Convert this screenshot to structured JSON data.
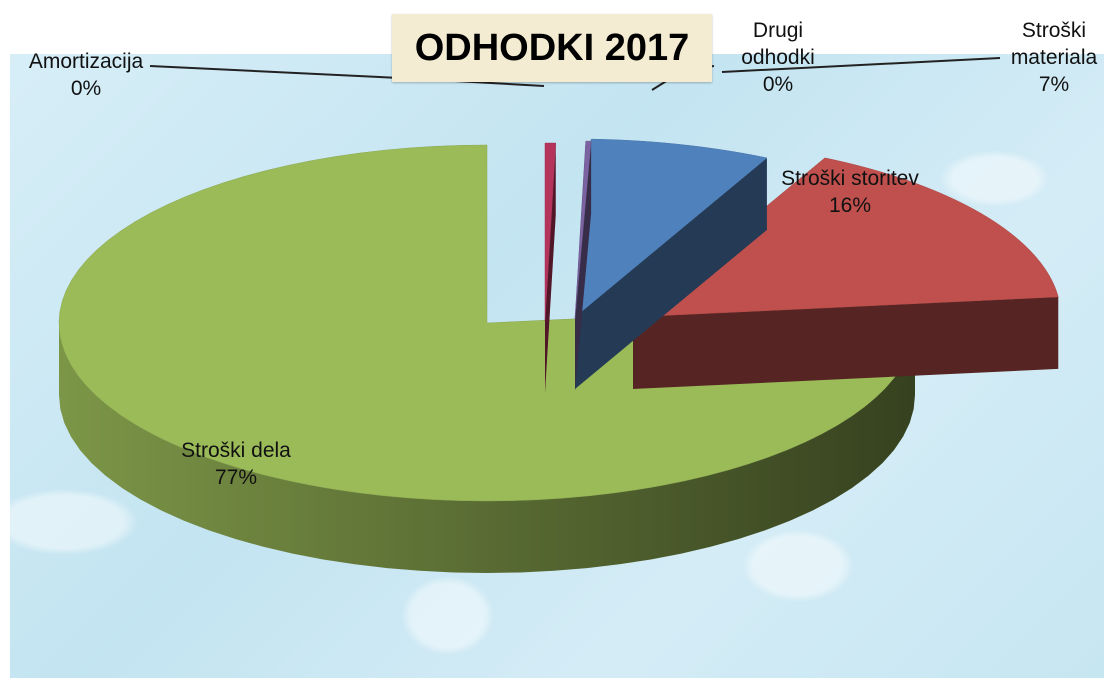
{
  "chart_data": {
    "type": "pie",
    "title": "ODHODKI 2017",
    "categories": [
      "Amortizacija",
      "Drugi odhodki",
      "Stroški materiala",
      "Stroški storitev",
      "Stroški dela"
    ],
    "values": [
      0.4,
      0.2,
      6.8,
      15.8,
      76.8
    ],
    "labels": [
      {
        "name": "Amortizacija",
        "pct": "0%"
      },
      {
        "name_lines": [
          "Drugi",
          "odhodki"
        ],
        "pct": "0%"
      },
      {
        "name_lines": [
          "Stroški",
          "materiala"
        ],
        "pct": "7%"
      },
      {
        "name": "Stroški storitev",
        "pct": "16%"
      },
      {
        "name": "Stroški dela",
        "pct": "77%"
      }
    ],
    "colors": [
      "#b4345c",
      "#7a63a0",
      "#4f81bd",
      "#c0504d",
      "#9bbb59"
    ],
    "style": "3d-exploded",
    "legend": "none"
  }
}
